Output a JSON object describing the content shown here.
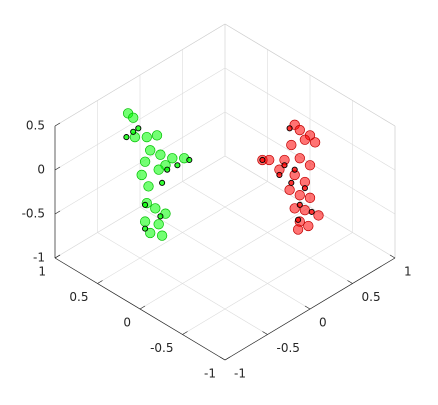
{
  "chart_data": {
    "type": "scatter3",
    "xlim": [
      -1,
      1
    ],
    "ylim": [
      -1,
      1
    ],
    "zlim": [
      -1,
      0.5
    ],
    "xticks": [
      -1,
      -0.5,
      0,
      0.5,
      1
    ],
    "yticks": [
      -1,
      -0.5,
      0,
      0.5,
      1
    ],
    "zticks": [
      -1,
      -0.5,
      0,
      0.5
    ],
    "grid": true,
    "series": [
      {
        "color": "#00ff00",
        "edgecolor": "#00c000",
        "x": [
          0.72,
          0.69,
          0.68,
          0.61,
          0.55,
          0.59,
          0.53,
          0.46,
          0.39,
          0.5,
          0.62,
          0.54,
          0.64,
          0.6,
          0.61,
          0.56,
          0.5,
          0.62,
          0.54,
          0.59,
          0.52
        ],
        "y": [
          -0.42,
          -0.39,
          -0.38,
          -0.31,
          -0.25,
          -0.29,
          -0.23,
          -0.16,
          -0.09,
          -0.2,
          -0.32,
          -0.24,
          -0.34,
          -0.3,
          -0.31,
          -0.26,
          -0.2,
          -0.32,
          -0.24,
          -0.29,
          -0.22
        ],
        "z": [
          0.47,
          0.42,
          0.2,
          0.2,
          0.22,
          0.05,
          0.0,
          -0.04,
          -0.04,
          -0.12,
          -0.08,
          -0.17,
          -0.23,
          -0.36,
          -0.55,
          -0.61,
          -0.67,
          -0.76,
          -0.79,
          -0.89,
          -0.92
        ]
      },
      {
        "color": "#00ff00",
        "edgecolor": "#000000",
        "x": [
          0.73,
          0.69,
          0.66,
          0.36,
          0.43,
          0.49,
          0.52,
          0.62,
          0.53,
          0.62
        ],
        "y": [
          -0.43,
          -0.39,
          -0.36,
          -0.06,
          -0.13,
          -0.19,
          -0.22,
          -0.32,
          -0.23,
          -0.32
        ],
        "z": [
          0.2,
          0.26,
          0.3,
          -0.06,
          -0.12,
          -0.17,
          -0.32,
          -0.57,
          -0.7,
          -0.84
        ]
      },
      {
        "color": "#ff0000",
        "edgecolor": "#c00000",
        "x": [
          -0.26,
          -0.29,
          -0.35,
          -0.32,
          -0.38,
          -0.24,
          -0.07,
          -0.11,
          -0.2,
          -0.29,
          -0.35,
          -0.17,
          -0.26,
          -0.32,
          -0.23,
          -0.29,
          -0.35,
          -0.26,
          -0.32,
          -0.4,
          -0.29,
          -0.28,
          -0.34
        ],
        "y": [
          0.56,
          0.59,
          0.65,
          0.62,
          0.68,
          0.54,
          0.37,
          0.41,
          0.5,
          0.59,
          0.65,
          0.47,
          0.56,
          0.62,
          0.53,
          0.59,
          0.65,
          0.56,
          0.62,
          0.7,
          0.59,
          0.58,
          0.64
        ],
        "z": [
          0.34,
          0.28,
          0.22,
          0.17,
          0.14,
          0.11,
          -0.06,
          -0.06,
          -0.06,
          -0.04,
          -0.12,
          -0.17,
          -0.23,
          -0.31,
          -0.4,
          -0.46,
          -0.49,
          -0.61,
          -0.63,
          -0.69,
          -0.76,
          -0.85,
          -0.81
        ]
      },
      {
        "color": "#ff0000",
        "edgecolor": "#000000",
        "x": [
          -0.23,
          -0.07,
          -0.2,
          -0.26,
          -0.17,
          -0.24,
          -0.29,
          -0.36,
          -0.28,
          -0.32
        ],
        "y": [
          0.53,
          0.37,
          0.5,
          0.56,
          0.47,
          0.54,
          0.59,
          0.66,
          0.58,
          0.62
        ],
        "z": [
          0.3,
          -0.06,
          -0.12,
          -0.17,
          -0.23,
          -0.32,
          -0.57,
          -0.65,
          -0.74,
          -0.38
        ]
      }
    ]
  }
}
